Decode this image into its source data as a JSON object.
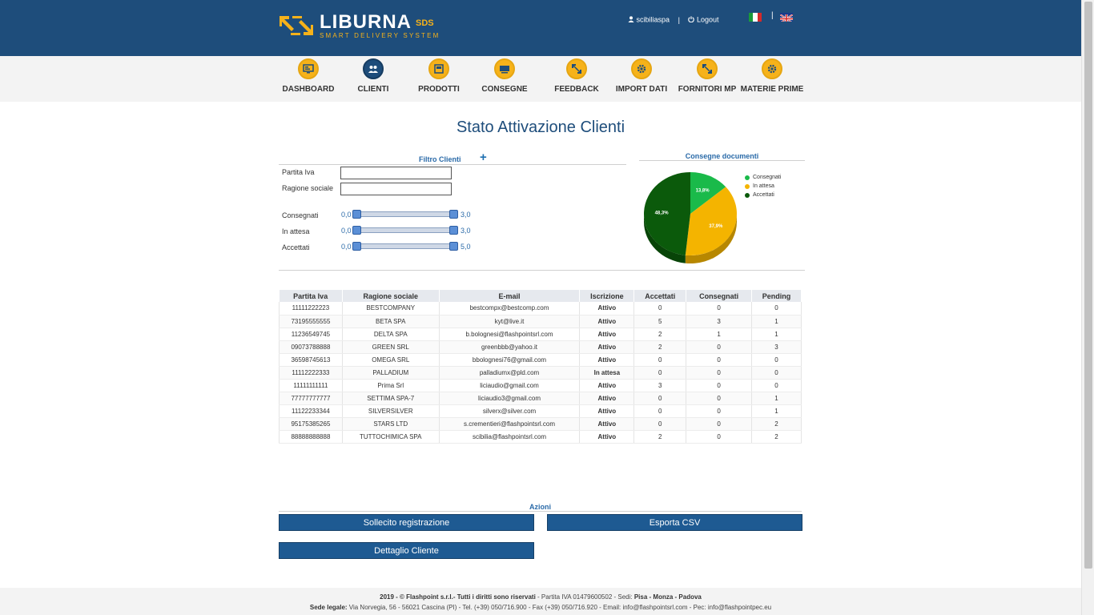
{
  "brand": {
    "name": "LIBURNA",
    "suffix": "SDS",
    "tagline": "SMART DELIVERY SYSTEM"
  },
  "header": {
    "user": "scibiliaspa",
    "separator": "|",
    "logout": "Logout",
    "lang_separator": "|"
  },
  "nav": [
    {
      "label": "DASHBOARD",
      "icon": "dashboard-icon"
    },
    {
      "label": "CLIENTI",
      "icon": "users-icon"
    },
    {
      "label": "PRODOTTI",
      "icon": "box-icon"
    },
    {
      "label": "CONSEGNE",
      "icon": "truck-icon"
    },
    {
      "label": "FEEDBACK",
      "icon": "arrows-icon"
    },
    {
      "label": "IMPORT DATI",
      "icon": "gear-icon"
    },
    {
      "label": "FORNITORI MP",
      "icon": "arrows-icon"
    },
    {
      "label": "MATERIE PRIME",
      "icon": "gear-icon"
    }
  ],
  "page_title": "Stato Attivazione Clienti",
  "filter": {
    "title": "Filtro Clienti",
    "plus": "+",
    "fields": [
      {
        "label": "Partita Iva",
        "value": ""
      },
      {
        "label": "Ragione sociale",
        "value": ""
      }
    ],
    "sliders": [
      {
        "label": "Consegnati",
        "min": "0,0",
        "max": "3,0"
      },
      {
        "label": "In attesa",
        "min": "0,0",
        "max": "3,0"
      },
      {
        "label": "Accettati",
        "min": "0,0",
        "max": "5,0"
      }
    ]
  },
  "chart_data": {
    "type": "pie",
    "title": "Consegne documenti",
    "categories": [
      "Consegnati",
      "In attesa",
      "Accettati"
    ],
    "values": [
      13.8,
      37.9,
      48.3
    ],
    "labels": [
      "13,8%",
      "37,9%",
      "48,3%"
    ],
    "colors": [
      "#1aba4a",
      "#f4b400",
      "#0b5a0b"
    ],
    "legend_position": "right"
  },
  "table": {
    "headers": [
      "Partita Iva",
      "Ragione sociale",
      "E-mail",
      "Iscrizione",
      "Accettati",
      "Consegnati",
      "Pending"
    ],
    "rows": [
      [
        "11111222223",
        "BESTCOMPANY",
        "bestcompx@bestcomp.com",
        "Attivo",
        "0",
        "0",
        "0"
      ],
      [
        "73195555555",
        "BETA SPA",
        "kyt@live.it",
        "Attivo",
        "5",
        "3",
        "1"
      ],
      [
        "11236549745",
        "DELTA SPA",
        "b.bolognesi@flashpointsrl.com",
        "Attivo",
        "2",
        "1",
        "1"
      ],
      [
        "09073788888",
        "GREEN SRL",
        "greenbbb@yahoo.it",
        "Attivo",
        "2",
        "0",
        "3"
      ],
      [
        "36598745613",
        "OMEGA SRL",
        "bbolognesi76@gmail.com",
        "Attivo",
        "0",
        "0",
        "0"
      ],
      [
        "11112222333",
        "PALLADIUM",
        "palladiumx@pld.com",
        "In attesa",
        "0",
        "0",
        "0"
      ],
      [
        "11111111111",
        "Prima Srl",
        "liciaudio@gmail.com",
        "Attivo",
        "3",
        "0",
        "0"
      ],
      [
        "77777777777",
        "SETTIMA SPA-7",
        "liciaudio3@gmail.com",
        "Attivo",
        "0",
        "0",
        "1"
      ],
      [
        "11122233344",
        "SILVERSILVER",
        "silverx@silver.com",
        "Attivo",
        "0",
        "0",
        "1"
      ],
      [
        "95175385265",
        "STARS LTD",
        "s.crementieri@flashpointsrl.com",
        "Attivo",
        "0",
        "0",
        "2"
      ],
      [
        "88888888888",
        "TUTTOCHIMICA SPA",
        "scibilia@flashpointsrl.com",
        "Attivo",
        "2",
        "0",
        "2"
      ]
    ]
  },
  "actions": {
    "title": "Azioni",
    "solicit": "Sollecito registrazione",
    "export": "Esporta CSV",
    "detail": "Dettaglio Cliente"
  },
  "footer": {
    "copyright": "2019 - © Flashpoint s.r.l.- Tutti i diritti sono riservati",
    "piva": " - Partita IVA 01479600502 - Sedi: ",
    "sedi": "Pisa - Monza - Padova",
    "legal_label": "Sede legale:",
    "legal": " Via Norvegia, 56 - 56021 Cascina (PI) - Tel. (+39) 050/716.900 - Fax (+39) 050/716.920 - Email: info@flashpointsrl.com - Pec: info@flashpointpec.eu"
  }
}
